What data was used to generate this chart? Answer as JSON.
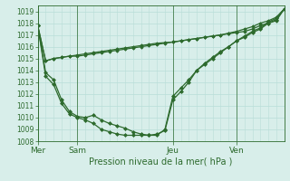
{
  "title": "Pression niveau de la mer( hPa )",
  "background_color": "#d8eeea",
  "grid_color": "#b8ddd8",
  "line_color": "#2d6a2d",
  "ylim": [
    1008,
    1019.5
  ],
  "yticks": [
    1008,
    1009,
    1010,
    1011,
    1012,
    1013,
    1014,
    1015,
    1016,
    1017,
    1018,
    1019
  ],
  "day_labels": [
    "Mer",
    "Sam",
    "Jeu",
    "Ven"
  ],
  "day_positions": [
    0,
    5,
    17,
    25
  ],
  "total_points": 32,
  "line_flat1": [
    1017.8,
    1014.8,
    1015.0,
    1015.1,
    1015.2,
    1015.2,
    1015.3,
    1015.4,
    1015.5,
    1015.6,
    1015.7,
    1015.8,
    1015.9,
    1016.0,
    1016.1,
    1016.2,
    1016.3,
    1016.4,
    1016.5,
    1016.6,
    1016.7,
    1016.8,
    1016.9,
    1017.0,
    1017.1,
    1017.2,
    1017.3,
    1017.5,
    1017.8,
    1018.0,
    1018.2,
    1019.2
  ],
  "line_flat2": [
    1017.8,
    1014.8,
    1015.0,
    1015.1,
    1015.2,
    1015.3,
    1015.4,
    1015.5,
    1015.6,
    1015.7,
    1015.8,
    1015.9,
    1016.0,
    1016.1,
    1016.2,
    1016.3,
    1016.35,
    1016.4,
    1016.5,
    1016.6,
    1016.7,
    1016.8,
    1016.9,
    1017.0,
    1017.15,
    1017.3,
    1017.5,
    1017.7,
    1018.0,
    1018.2,
    1018.5,
    1019.2
  ],
  "line_deep1": [
    1017.8,
    1013.8,
    1013.2,
    1011.5,
    1010.5,
    1010.1,
    1010.0,
    1010.2,
    1009.8,
    1009.5,
    1009.3,
    1009.1,
    1008.8,
    1008.6,
    1008.5,
    1008.5,
    1009.0,
    1011.8,
    1012.5,
    1013.2,
    1014.0,
    1014.5,
    1015.0,
    1015.5,
    1016.0,
    1016.5,
    1016.8,
    1017.2,
    1017.5,
    1018.0,
    1018.3,
    1019.2
  ],
  "line_deep2": [
    1017.8,
    1013.5,
    1012.8,
    1011.2,
    1010.3,
    1010.0,
    1009.8,
    1009.5,
    1009.0,
    1008.8,
    1008.6,
    1008.5,
    1008.5,
    1008.5,
    1008.5,
    1008.6,
    1008.9,
    1011.5,
    1012.2,
    1013.0,
    1014.0,
    1014.6,
    1015.1,
    1015.6,
    1016.0,
    1016.5,
    1016.9,
    1017.3,
    1017.6,
    1018.1,
    1018.4,
    1019.2
  ]
}
